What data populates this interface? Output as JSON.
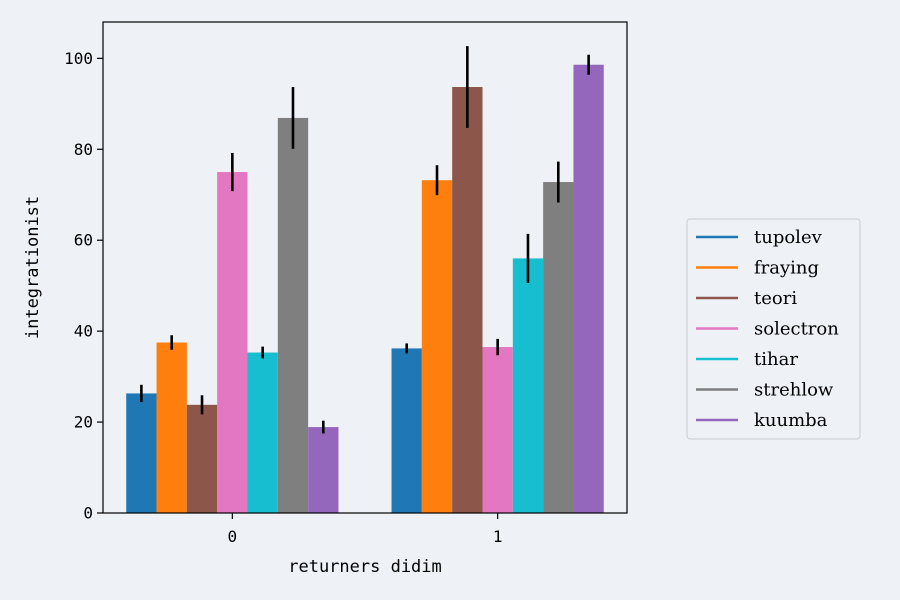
{
  "chart_data": {
    "type": "bar",
    "xlabel": "returners didim",
    "ylabel": "integrationist",
    "categories": [
      "0",
      "1"
    ],
    "ylim": [
      0,
      108
    ],
    "yticks": [
      0,
      20,
      40,
      60,
      80,
      100
    ],
    "grid": false,
    "legend_position": "right",
    "series": [
      {
        "name": "tupolev",
        "color": "#1f77b4",
        "values": [
          26.3,
          36.2
        ],
        "errors": [
          1.9,
          1.1
        ]
      },
      {
        "name": "fraying",
        "color": "#ff7f0e",
        "values": [
          37.5,
          73.2
        ],
        "errors": [
          1.6,
          3.3
        ]
      },
      {
        "name": "teori",
        "color": "#8c564b",
        "values": [
          23.8,
          93.7
        ],
        "errors": [
          2.1,
          9.0
        ]
      },
      {
        "name": "solectron",
        "color": "#e377c2",
        "values": [
          75.0,
          36.5
        ],
        "errors": [
          4.2,
          1.8
        ]
      },
      {
        "name": "tihar",
        "color": "#17becf",
        "values": [
          35.3,
          56.0
        ],
        "errors": [
          1.3,
          5.4
        ]
      },
      {
        "name": "strehlow",
        "color": "#7f7f7f",
        "values": [
          86.9,
          72.8
        ],
        "errors": [
          6.8,
          4.5
        ]
      },
      {
        "name": "kuumba",
        "color": "#9467bd",
        "values": [
          18.9,
          98.6
        ],
        "errors": [
          1.4,
          2.2
        ]
      }
    ]
  }
}
